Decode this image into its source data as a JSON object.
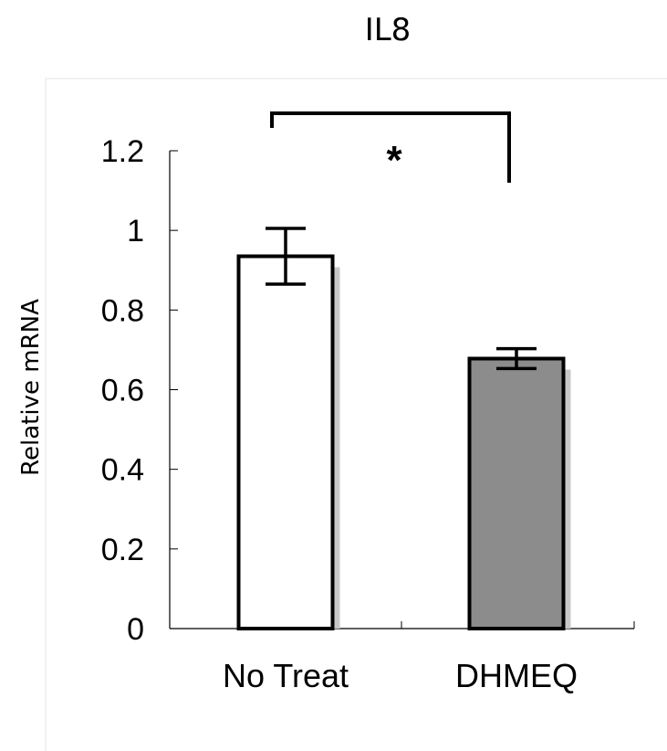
{
  "chart_data": {
    "type": "bar",
    "title": "IL8",
    "ylabel": "Relative mRNA",
    "xlabel": "",
    "categories": [
      "No Treat",
      "DHMEQ"
    ],
    "series": [
      {
        "values": [
          0.935,
          0.678
        ],
        "errors": [
          0.07,
          0.025
        ]
      }
    ],
    "ylim": [
      0,
      1.2
    ],
    "yticks": [
      "0",
      "0.2",
      "0.4",
      "0.6",
      "0.8",
      "1",
      "1.2"
    ],
    "bar_colors": [
      "#ffffff",
      "#8c8c8c"
    ],
    "bar_edge_color": "#000000",
    "bar_shadow_color": "#c8c8c8",
    "significance": {
      "label": "*",
      "between": [
        "No Treat",
        "DHMEQ"
      ]
    },
    "grid": false,
    "legend": "none"
  }
}
